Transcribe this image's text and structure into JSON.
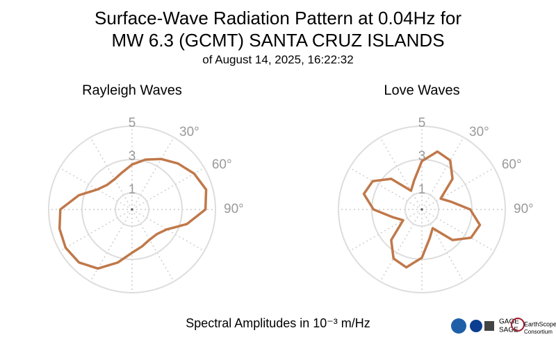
{
  "title": "Surface-Wave Radiation Pattern at 0.04Hz for",
  "title2": "MW 6.3 (GCMT) SANTA CRUZ ISLANDS",
  "subtitle": "of August 14, 2025, 16:22:32",
  "footer": "Spectral Amplitudes in 10⁻³ m/Hz",
  "logos": [
    "GAGE",
    "SAGE",
    "EarthScope",
    "Consortium"
  ],
  "chart_data": [
    {
      "type": "polar",
      "title": "Rayleigh Waves",
      "color": "#c0784a",
      "theta": [
        0,
        15,
        30,
        45,
        60,
        75,
        90,
        105,
        120,
        135,
        150,
        165,
        180,
        195,
        210,
        225,
        240,
        255,
        270,
        285,
        300,
        315,
        330,
        345
      ],
      "r": [
        2.7,
        3.1,
        3.5,
        3.9,
        4.3,
        4.6,
        4.4,
        3.4,
        2.4,
        2.1,
        2.1,
        2.3,
        2.6,
        3.3,
        4.1,
        4.5,
        4.6,
        4.5,
        4.3,
        3.3,
        2.4,
        2.1,
        2.1,
        2.3
      ],
      "rlim": [
        0,
        5
      ],
      "rticks": [
        1,
        3,
        5
      ],
      "thetaticks": [
        {
          "value": 30,
          "label": "30°"
        },
        {
          "value": 60,
          "label": "60°"
        },
        {
          "value": 90,
          "label": "90°"
        }
      ],
      "grid": true
    },
    {
      "type": "polar",
      "title": "Love Waves",
      "color": "#c0784a",
      "theta": [
        0,
        15,
        30,
        45,
        60,
        75,
        90,
        105,
        120,
        135,
        150,
        165,
        180,
        195,
        210,
        225,
        240,
        255,
        270,
        285,
        300,
        315,
        330,
        345
      ],
      "r": [
        2.9,
        3.6,
        3.4,
        2.6,
        1.3,
        1.8,
        2.9,
        3.6,
        3.4,
        2.6,
        1.3,
        1.8,
        2.9,
        3.6,
        3.4,
        2.6,
        1.3,
        1.8,
        2.9,
        3.6,
        3.4,
        2.6,
        1.3,
        1.8
      ],
      "rlim": [
        0,
        5
      ],
      "rticks": [
        1,
        3,
        5
      ],
      "thetaticks": [
        {
          "value": 30,
          "label": "30°"
        },
        {
          "value": 60,
          "label": "60°"
        },
        {
          "value": 90,
          "label": "90°"
        }
      ],
      "grid": true
    }
  ]
}
